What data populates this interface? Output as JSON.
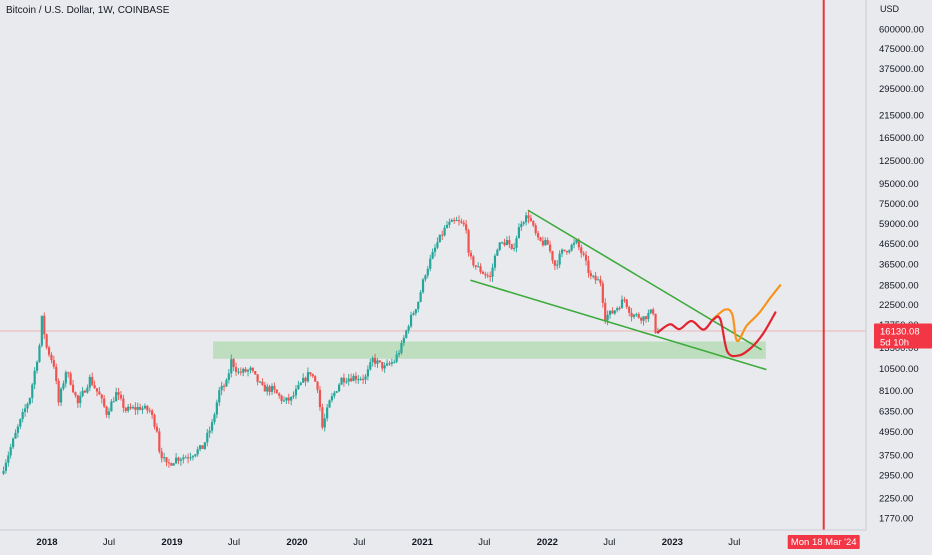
{
  "header": {
    "title": "Bitcoin / U.S. Dollar, 1W, COINBASE",
    "currency": "USD"
  },
  "chart_data": {
    "type": "candlestick",
    "symbol": "Bitcoin / U.S. Dollar",
    "interval": "1W",
    "exchange": "COINBASE",
    "y_scale": "log",
    "y_axis_unit": "USD",
    "y_ticks": [
      600000,
      475000,
      375000,
      295000,
      215000,
      165000,
      125000,
      95000,
      75000,
      59000,
      46500,
      36500,
      28500,
      22500,
      17750,
      13500,
      10500,
      8100,
      6350,
      4950,
      3750,
      2950,
      2250,
      1770
    ],
    "y_tick_labels": [
      "600000.00",
      "475000.00",
      "375000.00",
      "295000.00",
      "215000.00",
      "165000.00",
      "125000.00",
      "95000.00",
      "75000.00",
      "59000.00",
      "46500.00",
      "36500.00",
      "28500.00",
      "22500.00",
      "17750.00",
      "13500.00",
      "10500.00",
      "8100.00",
      "6350.00",
      "4950.00",
      "3750.00",
      "2950.00",
      "2250.00",
      "1770.00"
    ],
    "x_ticks": [
      {
        "label": "2018",
        "date": "2018-01-01",
        "bold": true
      },
      {
        "label": "Jul",
        "date": "2018-07-01",
        "bold": false
      },
      {
        "label": "2019",
        "date": "2019-01-01",
        "bold": true
      },
      {
        "label": "Jul",
        "date": "2019-07-01",
        "bold": false
      },
      {
        "label": "2020",
        "date": "2020-01-01",
        "bold": true
      },
      {
        "label": "Jul",
        "date": "2020-07-01",
        "bold": false
      },
      {
        "label": "2021",
        "date": "2021-01-01",
        "bold": true
      },
      {
        "label": "Jul",
        "date": "2021-07-01",
        "bold": false
      },
      {
        "label": "2022",
        "date": "2022-01-01",
        "bold": true
      },
      {
        "label": "Jul",
        "date": "2022-07-01",
        "bold": false
      },
      {
        "label": "2023",
        "date": "2023-01-01",
        "bold": true
      },
      {
        "label": "Jul",
        "date": "2023-07-01",
        "bold": false
      }
    ],
    "price_path": [
      [
        "2017-08-20",
        3000
      ],
      [
        "2017-09-17",
        4100
      ],
      [
        "2017-10-15",
        5600
      ],
      [
        "2017-11-12",
        7500
      ],
      [
        "2017-12-10",
        13800
      ],
      [
        "2017-12-17",
        19000
      ],
      [
        "2017-12-31",
        13500
      ],
      [
        "2018-01-21",
        11000
      ],
      [
        "2018-02-04",
        7000
      ],
      [
        "2018-02-25",
        10200
      ],
      [
        "2018-03-11",
        9000
      ],
      [
        "2018-04-01",
        6900
      ],
      [
        "2018-05-06",
        9300
      ],
      [
        "2018-06-03",
        7600
      ],
      [
        "2018-06-24",
        6200
      ],
      [
        "2018-07-22",
        7800
      ],
      [
        "2018-08-19",
        6400
      ],
      [
        "2018-09-30",
        6600
      ],
      [
        "2018-10-28",
        6350
      ],
      [
        "2018-11-18",
        5100
      ],
      [
        "2018-11-25",
        4000
      ],
      [
        "2018-12-16",
        3300
      ],
      [
        "2019-01-13",
        3600
      ],
      [
        "2019-02-17",
        3700
      ],
      [
        "2019-03-31",
        4100
      ],
      [
        "2019-04-28",
        5400
      ],
      [
        "2019-05-19",
        8000
      ],
      [
        "2019-06-09",
        8800
      ],
      [
        "2019-06-23",
        11500
      ],
      [
        "2019-07-14",
        10000
      ],
      [
        "2019-08-18",
        10300
      ],
      [
        "2019-09-22",
        8300
      ],
      [
        "2019-10-20",
        8200
      ],
      [
        "2019-11-24",
        7100
      ],
      [
        "2019-12-15",
        7300
      ],
      [
        "2020-01-12",
        8700
      ],
      [
        "2020-02-09",
        10100
      ],
      [
        "2020-03-01",
        8500
      ],
      [
        "2020-03-15",
        5200
      ],
      [
        "2020-04-05",
        7000
      ],
      [
        "2020-05-10",
        9300
      ],
      [
        "2020-06-14",
        9500
      ],
      [
        "2020-07-19",
        9400
      ],
      [
        "2020-08-09",
        11700
      ],
      [
        "2020-09-13",
        10600
      ],
      [
        "2020-10-11",
        11500
      ],
      [
        "2020-11-01",
        13700
      ],
      [
        "2020-11-22",
        18000
      ],
      [
        "2020-12-20",
        23500
      ],
      [
        "2021-01-10",
        33000
      ],
      [
        "2021-02-14",
        47000
      ],
      [
        "2021-03-14",
        58000
      ],
      [
        "2021-04-11",
        60500
      ],
      [
        "2021-05-09",
        57000
      ],
      [
        "2021-05-16",
        40000
      ],
      [
        "2021-06-06",
        35500
      ],
      [
        "2021-06-27",
        33000
      ],
      [
        "2021-07-18",
        31000
      ],
      [
        "2021-08-08",
        45000
      ],
      [
        "2021-09-05",
        48000
      ],
      [
        "2021-09-19",
        42000
      ],
      [
        "2021-10-17",
        61000
      ],
      [
        "2021-11-07",
        65000
      ],
      [
        "2021-12-05",
        48000
      ],
      [
        "2022-01-02",
        46000
      ],
      [
        "2022-01-23",
        36000
      ],
      [
        "2022-02-13",
        42000
      ],
      [
        "2022-03-27",
        47000
      ],
      [
        "2022-04-17",
        39500
      ],
      [
        "2022-05-08",
        31000
      ],
      [
        "2022-06-05",
        29500
      ],
      [
        "2022-06-19",
        19500
      ],
      [
        "2022-07-10",
        20500
      ],
      [
        "2022-08-14",
        24000
      ],
      [
        "2022-09-04",
        20000
      ],
      [
        "2022-10-09",
        19300
      ],
      [
        "2022-11-06",
        20800
      ],
      [
        "2022-11-13",
        16500
      ],
      [
        "2022-11-20",
        16130
      ]
    ],
    "annotations": {
      "support_zone": {
        "from_date": "2019-05-01",
        "to_date": "2023-10-01",
        "low": 11800,
        "high": 14500
      },
      "upper_trendline": [
        [
          "2021-11-07",
          69000
        ],
        [
          "2023-09-17",
          13200
        ]
      ],
      "lower_trendline": [
        [
          "2021-05-23",
          30000
        ],
        [
          "2023-10-01",
          10400
        ]
      ],
      "red_projection": [
        [
          "2022-11-20",
          16200
        ],
        [
          "2022-12-25",
          17800
        ],
        [
          "2023-01-22",
          16800
        ],
        [
          "2023-02-26",
          18500
        ],
        [
          "2023-04-02",
          16700
        ],
        [
          "2023-04-30",
          18800
        ],
        [
          "2023-05-21",
          18900
        ],
        [
          "2023-06-11",
          12800
        ],
        [
          "2023-07-16",
          12300
        ],
        [
          "2023-08-20",
          13500
        ],
        [
          "2023-09-24",
          16000
        ],
        [
          "2023-10-29",
          20500
        ]
      ],
      "orange_projection": [
        [
          "2023-04-30",
          18900
        ],
        [
          "2023-06-04",
          21200
        ],
        [
          "2023-06-25",
          20000
        ],
        [
          "2023-07-09",
          14600
        ],
        [
          "2023-08-06",
          17500
        ],
        [
          "2023-09-10",
          20200
        ],
        [
          "2023-10-15",
          24500
        ],
        [
          "2023-11-12",
          28300
        ]
      ],
      "vertical_marker": {
        "date": "2024-03-18",
        "label": "Mon 18 Mar '24"
      },
      "last_price": {
        "value": 16130.08,
        "label": "16130.08",
        "countdown": "5d 10h"
      }
    },
    "colors": {
      "background": "#e9eaed",
      "up": "#26a69a",
      "down": "#ef5350",
      "trendline": "#3cab3c",
      "zone_fill": "#b7dcb6",
      "projection_red": "#e3232f",
      "projection_orange": "#f7941d",
      "vertical_marker": "#ea3439",
      "price_label_bg": "#f23645"
    }
  }
}
